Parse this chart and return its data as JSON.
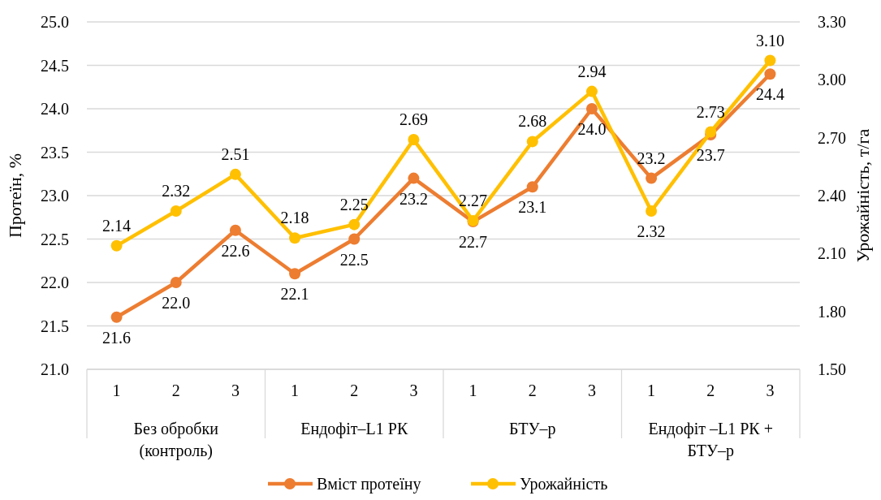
{
  "chart_data": {
    "type": "line",
    "ylabel": "Протеїн, %",
    "y2label": "Урожайність, т/га",
    "categories": [
      "1",
      "2",
      "3",
      "1",
      "2",
      "3",
      "1",
      "2",
      "3",
      "1",
      "2",
      "3"
    ],
    "annotations": [
      "Без обробки (контроль)",
      "Ендофіт–L1 РК",
      "БТУ–р",
      "Ендофіт –L1 РК + БТУ–р"
    ],
    "series": [
      {
        "name": "Вміст протеїну",
        "color": "#ed7d31",
        "values": [
          21.6,
          22.0,
          22.6,
          22.1,
          22.5,
          23.2,
          22.7,
          23.1,
          24.0,
          23.2,
          23.7,
          24.4
        ],
        "value_labels": [
          "21.6",
          "22.0",
          "22.6",
          "22.1",
          "22.5",
          "23.2",
          "22.7",
          "23.1",
          "24.0",
          "23.2",
          "23.7",
          "24.4"
        ]
      },
      {
        "name": "Урожайність",
        "color": "#ffc000",
        "axis": "y2",
        "values": [
          2.14,
          2.32,
          2.51,
          2.18,
          2.25,
          2.69,
          2.27,
          2.68,
          2.94,
          2.32,
          2.73,
          3.1
        ],
        "value_labels": [
          "2.14",
          "2.32",
          "2.51",
          "2.18",
          "2.25",
          "2.69",
          "2.27",
          "2.68",
          "2.94",
          "2.32",
          "2.73",
          "3.10"
        ]
      }
    ],
    "ylim": [
      21,
      25
    ],
    "yticks": [
      {
        "value": 21,
        "label": "21.0"
      },
      {
        "value": 21.5,
        "label": "21.5"
      },
      {
        "value": 22,
        "label": "22.0"
      },
      {
        "value": 22.5,
        "label": "22.5"
      },
      {
        "value": 23,
        "label": "23.0"
      },
      {
        "value": 23.5,
        "label": "23.5"
      },
      {
        "value": 24,
        "label": "24.0"
      },
      {
        "value": 24.5,
        "label": "24.5"
      },
      {
        "value": 25,
        "label": "25.0"
      }
    ],
    "y2lim": [
      1.5,
      3.3
    ],
    "y2ticks": [
      {
        "value": 1.5,
        "label": "1.50"
      },
      {
        "value": 1.8,
        "label": "1.80"
      },
      {
        "value": 2.1,
        "label": "2.10"
      },
      {
        "value": 2.4,
        "label": "2.40"
      },
      {
        "value": 2.7,
        "label": "2.70"
      },
      {
        "value": 3.0,
        "label": "3.00"
      },
      {
        "value": 3.3,
        "label": "3.30"
      }
    ],
    "grid": "y",
    "legend": "bottom",
    "marker": "circle",
    "line_style": "solid"
  }
}
